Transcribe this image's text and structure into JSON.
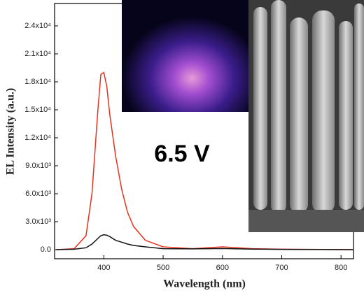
{
  "chart_data": {
    "type": "line",
    "annotation": "6.5 V",
    "x_label": "Wavelength (nm)",
    "y_label": "EL Intensity (a.u.)",
    "x": [
      320,
      350,
      370,
      380,
      390,
      395,
      400,
      405,
      410,
      420,
      430,
      440,
      450,
      470,
      500,
      550,
      600,
      650,
      700,
      820
    ],
    "series": [
      {
        "color": "#e8321e",
        "values": [
          0,
          100,
          1500,
          6000,
          15000,
          18800,
          19000,
          17500,
          14500,
          10000,
          6500,
          4000,
          2500,
          1000,
          300,
          100,
          300,
          100,
          50,
          0
        ]
      },
      {
        "color": "#111111",
        "values": [
          0,
          50,
          200,
          600,
          1200,
          1500,
          1600,
          1550,
          1400,
          1000,
          800,
          600,
          450,
          300,
          100,
          80,
          120,
          60,
          30,
          0
        ]
      }
    ],
    "xlim": [
      317,
      821
    ],
    "ylim": [
      -975,
      26400
    ],
    "xticks": [
      400,
      500,
      600,
      700,
      800
    ],
    "yticks": [
      {
        "value": 0,
        "label": "0.0"
      },
      {
        "value": 3000,
        "label": "3.0x10³"
      },
      {
        "value": 6000,
        "label": "6.0x10³"
      },
      {
        "value": 9000,
        "label": "9.0x10³"
      },
      {
        "value": 12000,
        "label": "1.2x10⁴"
      },
      {
        "value": 15000,
        "label": "1.5x10⁴"
      },
      {
        "value": 18000,
        "label": "1.8x10⁴"
      },
      {
        "value": 21000,
        "label": "2.1x10⁴"
      },
      {
        "value": 24000,
        "label": "2.4x10⁴"
      }
    ]
  }
}
